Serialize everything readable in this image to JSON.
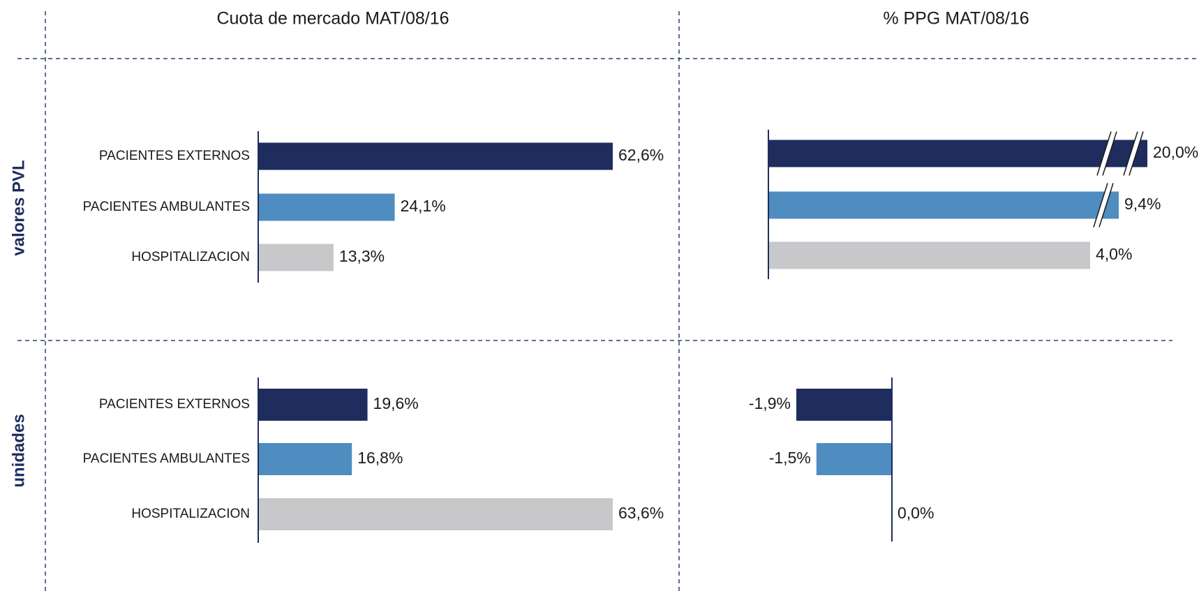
{
  "column_titles": [
    "Cuota de mercado MAT/08/16",
    "% PPG MAT/08/16"
  ],
  "row_labels": [
    "valores PVL",
    "unidades"
  ],
  "chart_data": [
    {
      "type": "bar",
      "orientation": "horizontal",
      "categories": [
        "PACIENTES EXTERNOS",
        "PACIENTES AMBULANTES",
        "HOSPITALIZACION"
      ],
      "values": [
        62.6,
        24.1,
        13.3
      ],
      "value_labels": [
        "62,6%",
        "24,1%",
        "13,3%"
      ],
      "colors": [
        "#1f2d5e",
        "#4f8cc0",
        "#c8c8ca"
      ]
    },
    {
      "type": "bar",
      "orientation": "horizontal",
      "axis_break": true,
      "values": [
        20.0,
        9.4,
        4.0
      ],
      "value_labels": [
        "20,0%",
        "9,4%",
        "4,0%"
      ],
      "colors": [
        "#1f2d5e",
        "#4f8cc0",
        "#c8c8ca"
      ]
    },
    {
      "type": "bar",
      "orientation": "horizontal",
      "categories": [
        "PACIENTES EXTERNOS",
        "PACIENTES AMBULANTES",
        "HOSPITALIZACION"
      ],
      "values": [
        19.6,
        16.8,
        63.6
      ],
      "value_labels": [
        "19,6%",
        "16,8%",
        "63,6%"
      ],
      "colors": [
        "#1f2d5e",
        "#4f8cc0",
        "#c8c8ca"
      ]
    },
    {
      "type": "bar",
      "orientation": "horizontal",
      "values": [
        -1.9,
        -1.5,
        0.0
      ],
      "value_labels": [
        "-1,9%",
        "-1,5%",
        "0,0%"
      ],
      "colors": [
        "#1f2d5e",
        "#4f8cc0",
        "#c8c8ca"
      ]
    }
  ]
}
